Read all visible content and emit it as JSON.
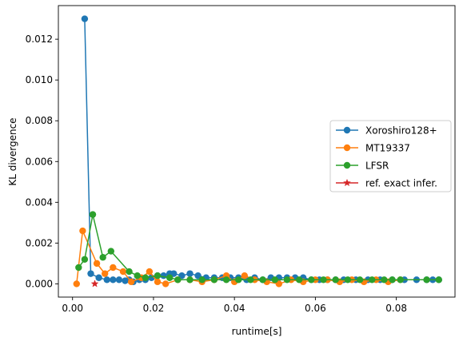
{
  "chart_data": {
    "type": "line",
    "title": "",
    "xlabel": "runtime[s]",
    "ylabel": "KL divergence",
    "xlim": [
      -0.0035,
      0.0945
    ],
    "ylim": [
      -0.00065,
      0.01365
    ],
    "xticks": [
      0.0,
      0.02,
      0.04,
      0.06,
      0.08
    ],
    "xtick_labels": [
      "0.00",
      "0.02",
      "0.04",
      "0.06",
      "0.08"
    ],
    "yticks": [
      0.0,
      0.002,
      0.004,
      0.006,
      0.008,
      0.01,
      0.012
    ],
    "ytick_labels": [
      "0.000",
      "0.002",
      "0.004",
      "0.006",
      "0.008",
      "0.010",
      "0.012"
    ],
    "grid": false,
    "legend_position": "center-right",
    "series": [
      {
        "name": "Xoroshiro128+",
        "color": "#1f77b4",
        "marker": "circle",
        "x": [
          0.003,
          0.0045,
          0.0065,
          0.0085,
          0.01,
          0.0115,
          0.013,
          0.014,
          0.015,
          0.0165,
          0.018,
          0.0195,
          0.021,
          0.0225,
          0.024,
          0.025,
          0.027,
          0.029,
          0.031,
          0.033,
          0.035,
          0.037,
          0.039,
          0.041,
          0.043,
          0.045,
          0.047,
          0.049,
          0.051,
          0.053,
          0.055,
          0.057,
          0.059,
          0.061,
          0.063,
          0.065,
          0.067,
          0.07,
          0.073,
          0.076,
          0.079,
          0.082,
          0.085,
          0.0875,
          0.089,
          0.0905
        ],
        "y": [
          0.013,
          0.0005,
          0.0003,
          0.0002,
          0.0002,
          0.0002,
          0.00015,
          0.0002,
          0.0001,
          0.0002,
          0.0002,
          0.0003,
          0.0004,
          0.0004,
          0.0005,
          0.0005,
          0.0004,
          0.0005,
          0.0004,
          0.0003,
          0.0003,
          0.0003,
          0.0003,
          0.0003,
          0.0002,
          0.0003,
          0.0002,
          0.0003,
          0.0003,
          0.0003,
          0.0003,
          0.0003,
          0.0002,
          0.0002,
          0.0002,
          0.0002,
          0.0002,
          0.0002,
          0.0002,
          0.0002,
          0.0002,
          0.0002,
          0.0002,
          0.0002,
          0.0002,
          0.0002
        ]
      },
      {
        "name": "MT19337",
        "color": "#ff7f0e",
        "marker": "circle",
        "x": [
          0.001,
          0.0025,
          0.006,
          0.008,
          0.01,
          0.0125,
          0.0145,
          0.017,
          0.019,
          0.021,
          0.023,
          0.026,
          0.029,
          0.032,
          0.035,
          0.038,
          0.04,
          0.0425,
          0.045,
          0.048,
          0.051,
          0.054,
          0.057,
          0.06,
          0.063,
          0.066,
          0.069,
          0.072,
          0.075,
          0.078,
          0.081
        ],
        "y": [
          0.0,
          0.0026,
          0.001,
          0.0005,
          0.0008,
          0.0006,
          0.0001,
          0.0003,
          0.0006,
          0.0001,
          0.0,
          0.0002,
          0.0002,
          0.0001,
          0.0002,
          0.0004,
          0.0001,
          0.0004,
          0.0002,
          0.0001,
          0.0,
          0.0002,
          0.0001,
          0.0002,
          0.0002,
          0.0001,
          0.0002,
          0.0001,
          0.0002,
          0.0001,
          0.0002
        ]
      },
      {
        "name": "LFSR",
        "color": "#2ca02c",
        "marker": "circle",
        "x": [
          0.0015,
          0.003,
          0.005,
          0.0075,
          0.0095,
          0.014,
          0.016,
          0.018,
          0.021,
          0.024,
          0.026,
          0.029,
          0.032,
          0.035,
          0.038,
          0.041,
          0.044,
          0.047,
          0.05,
          0.053,
          0.056,
          0.059,
          0.062,
          0.065,
          0.068,
          0.071,
          0.074,
          0.077,
          0.079,
          0.081,
          0.0875,
          0.0905
        ],
        "y": [
          0.0008,
          0.0012,
          0.0034,
          0.0013,
          0.0016,
          0.0006,
          0.0004,
          0.0003,
          0.0004,
          0.0003,
          0.0002,
          0.0002,
          0.0002,
          0.0002,
          0.0002,
          0.0002,
          0.0002,
          0.0002,
          0.0002,
          0.0002,
          0.0002,
          0.0002,
          0.0002,
          0.0002,
          0.0002,
          0.0002,
          0.0002,
          0.0002,
          0.0002,
          0.0002,
          0.0002,
          0.0002
        ]
      },
      {
        "name": "ref. exact infer.",
        "color": "#d62728",
        "marker": "star",
        "x": [
          0.0055
        ],
        "y": [
          0.0
        ]
      }
    ]
  }
}
